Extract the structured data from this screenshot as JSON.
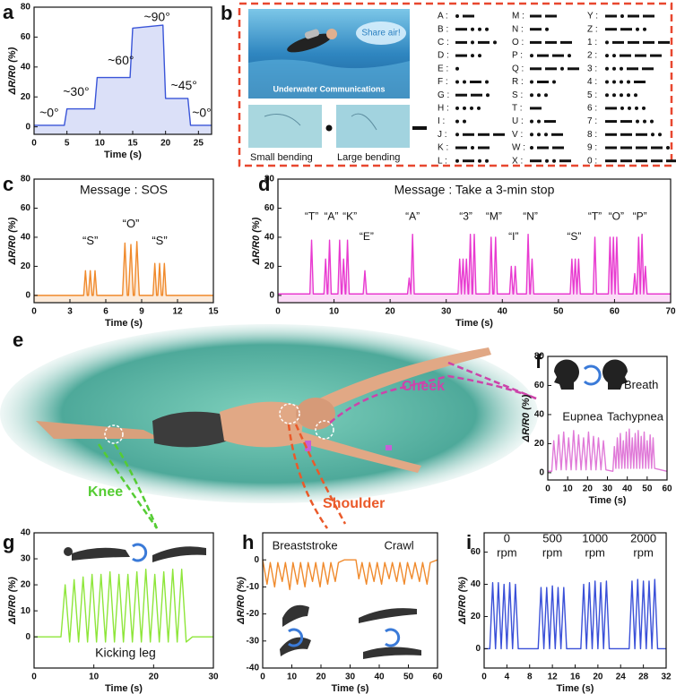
{
  "chart_data": [
    {
      "type": "line",
      "panel": "a",
      "xlabel": "Time (s)",
      "ylabel": "ΔR/R0 (%)",
      "color": "#3a55d8",
      "area": true,
      "xlim": [
        0,
        27
      ],
      "ylim": [
        -5,
        80
      ],
      "xticks": [
        0,
        5,
        10,
        15,
        20,
        25
      ],
      "yticks": [
        0,
        20,
        40,
        60,
        80
      ],
      "x": [
        0,
        4.6,
        5.0,
        9.2,
        9.6,
        14.6,
        15.0,
        19.6,
        20.0,
        23.4,
        23.8,
        27
      ],
      "values": [
        1,
        1,
        12,
        12,
        33,
        33,
        66,
        68,
        19,
        19,
        1,
        1
      ],
      "annotations": [
        "~0°",
        "~30°",
        "~60°",
        "~90°",
        "~45°",
        "~0°"
      ]
    },
    {
      "type": "line",
      "panel": "c",
      "title": "Message : SOS",
      "xlabel": "Time (s)",
      "ylabel": "ΔR/R0 (%)",
      "color": "#f08a2c",
      "area": true,
      "xlim": [
        0,
        15
      ],
      "ylim": [
        -5,
        80
      ],
      "xticks": [
        0,
        3,
        6,
        9,
        12,
        15
      ],
      "yticks": [
        0,
        20,
        40,
        60,
        80
      ],
      "x": [
        0,
        4.15,
        4.3,
        4.45,
        4.55,
        4.7,
        4.85,
        4.95,
        5.1,
        5.25,
        7.4,
        7.6,
        7.8,
        7.9,
        8.1,
        8.3,
        8.4,
        8.6,
        8.8,
        9.95,
        10.1,
        10.25,
        10.35,
        10.5,
        10.65,
        10.75,
        10.9,
        11.05,
        15
      ],
      "values": [
        0,
        0,
        17,
        0,
        0,
        17,
        0,
        0,
        17,
        0,
        0,
        36,
        0,
        0,
        35,
        0,
        0,
        37,
        0,
        0,
        22,
        0,
        0,
        22,
        0,
        0,
        22,
        0,
        0
      ],
      "annotations": [
        "“S”",
        "“O”",
        "“S”"
      ]
    },
    {
      "type": "line",
      "panel": "d",
      "title": "Message : Take a 3-min stop",
      "xlabel": "Time (s)",
      "ylabel": "ΔR/R0 (%)",
      "color": "#e83ad0",
      "area": true,
      "xlim": [
        0,
        70
      ],
      "ylim": [
        -5,
        80
      ],
      "xticks": [
        0,
        10,
        20,
        30,
        40,
        50,
        60,
        70
      ],
      "yticks": [
        0,
        20,
        40,
        60,
        80
      ],
      "x": [
        0,
        5.7,
        6,
        6.3,
        8.2,
        8.5,
        8.8,
        8.9,
        9.2,
        9.5,
        10.7,
        11,
        11.3,
        11.4,
        11.7,
        12,
        12.1,
        12.4,
        12.7,
        15.2,
        15.5,
        15.8,
        23.1,
        23.4,
        23.7,
        23.7,
        24,
        24.3,
        32.1,
        32.4,
        32.7,
        32.7,
        33,
        33.3,
        33.3,
        33.6,
        33.9,
        34,
        34.3,
        34.6,
        34.7,
        35,
        35.3,
        37.7,
        38,
        38.3,
        38.5,
        38.8,
        39.1,
        41.3,
        41.6,
        41.9,
        42,
        42.3,
        42.6,
        44.3,
        44.6,
        44.9,
        45,
        45.3,
        45.6,
        52.1,
        52.4,
        52.7,
        52.7,
        53,
        53.3,
        53.3,
        53.6,
        53.9,
        56.2,
        56.5,
        56.8,
        58.9,
        59.2,
        59.5,
        59.5,
        59.8,
        60.1,
        60.1,
        60.4,
        60.7,
        63.3,
        63.6,
        63.9,
        64,
        64.3,
        64.6,
        64.6,
        64.9,
        65.2,
        65.2,
        65.5,
        65.8,
        70
      ],
      "values": [
        1,
        1,
        38,
        1,
        1,
        25,
        1,
        1,
        38,
        1,
        1,
        38,
        1,
        1,
        25,
        1,
        1,
        38,
        1,
        1,
        17,
        1,
        1,
        12,
        1,
        1,
        42,
        1,
        1,
        25,
        1,
        1,
        25,
        1,
        1,
        25,
        1,
        1,
        42,
        1,
        1,
        42,
        1,
        1,
        40,
        1,
        1,
        40,
        1,
        1,
        20,
        1,
        1,
        20,
        1,
        1,
        42,
        1,
        1,
        25,
        1,
        1,
        25,
        1,
        1,
        25,
        1,
        1,
        25,
        1,
        1,
        40,
        1,
        1,
        40,
        1,
        1,
        40,
        1,
        1,
        40,
        1,
        1,
        15,
        1,
        1,
        40,
        1,
        1,
        42,
        1,
        1,
        20,
        1,
        1
      ],
      "annotations": [
        "“T”",
        "“A”",
        "“K”",
        "“E”",
        "“A”",
        "“3”",
        "“M”",
        "“I”",
        "“N”",
        "“S”",
        "“T”",
        "“O”",
        "“P”"
      ]
    },
    {
      "type": "line",
      "panel": "f",
      "xlabel": "Time (s)",
      "ylabel": "ΔR/R0 (%)",
      "color": "#e07ad8",
      "xlim": [
        0,
        60
      ],
      "ylim": [
        -5,
        80
      ],
      "xticks": [
        0,
        10,
        20,
        30,
        40,
        50,
        60
      ],
      "yticks": [
        0,
        20,
        40,
        60,
        80
      ],
      "x": [
        0,
        2,
        3,
        4.25,
        5.5,
        6.75,
        8,
        9.25,
        10.5,
        11.75,
        13,
        14.25,
        15.5,
        16.75,
        18,
        19.25,
        20.5,
        21.75,
        23,
        24.25,
        25.5,
        26.75,
        28,
        29.25,
        32.75,
        33.5,
        34.25,
        35,
        35.75,
        36.5,
        37.25,
        38,
        38.75,
        39.5,
        40.25,
        41,
        41.75,
        42.5,
        43.25,
        44,
        44.75,
        45.5,
        46.25,
        47,
        47.75,
        48.5,
        49.25,
        50,
        50.75,
        51.5,
        52.25,
        53,
        53.75,
        60
      ],
      "values": [
        1,
        1,
        22,
        2,
        26,
        2,
        28,
        2,
        24,
        2,
        29,
        2,
        26,
        2,
        24,
        2,
        28,
        2,
        25,
        2,
        24,
        2,
        22,
        2,
        1,
        18,
        3,
        24,
        3,
        27,
        3,
        22,
        3,
        28,
        3,
        30,
        3,
        24,
        3,
        27,
        3,
        29,
        3,
        25,
        3,
        28,
        3,
        22,
        3,
        26,
        3,
        24,
        3,
        1
      ],
      "annotations": [
        "Breath",
        "Eupnea",
        "Tachypnea"
      ]
    },
    {
      "type": "line",
      "panel": "g",
      "xlabel": "Time (s)",
      "ylabel": "ΔR/R0 (%)",
      "color": "#8ee63a",
      "xlim": [
        0,
        30
      ],
      "ylim": [
        -12,
        40
      ],
      "xticks": [
        0,
        10,
        20,
        30
      ],
      "yticks": [
        0,
        10,
        20,
        30,
        40
      ],
      "x": [
        0,
        4.5,
        5.2,
        5.95,
        6.7,
        7.45,
        8.2,
        8.95,
        9.7,
        10.45,
        11.2,
        11.95,
        12.7,
        13.45,
        14.2,
        14.95,
        15.7,
        16.45,
        17.2,
        17.95,
        18.7,
        19.45,
        20.2,
        20.95,
        21.7,
        22.45,
        23.2,
        23.95,
        24.7,
        25.45,
        26.5,
        30
      ],
      "values": [
        0,
        0,
        20,
        -2,
        22,
        -2,
        23,
        -2,
        24,
        -2,
        24,
        -2,
        25,
        -2,
        24,
        -2,
        24,
        -2,
        25,
        -2,
        26,
        -2,
        24,
        -2,
        25,
        -2,
        26,
        -2,
        26,
        -2,
        0,
        0
      ],
      "annotations": [
        "Kicking leg"
      ]
    },
    {
      "type": "line",
      "panel": "h",
      "xlabel": "Time (s)",
      "ylabel": "ΔR/R0 (%)",
      "color": "#f08a2c",
      "xlim": [
        0,
        60
      ],
      "ylim": [
        -40,
        10
      ],
      "xticks": [
        0,
        10,
        20,
        30,
        40,
        50,
        60
      ],
      "yticks": [
        0,
        -10,
        -20,
        -30,
        -40
      ],
      "x": [
        0,
        1.5,
        2.6,
        4.1,
        5.2,
        6.7,
        7.8,
        9.3,
        10.4,
        11.9,
        13,
        14.5,
        15.6,
        17.1,
        18.2,
        19.7,
        20.8,
        22.3,
        23.4,
        24.9,
        26,
        28,
        32,
        33,
        34.1,
        35.6,
        36.7,
        38.2,
        39.3,
        40.8,
        41.9,
        43.4,
        44.5,
        46,
        47.1,
        48.6,
        49.7,
        51.2,
        52.3,
        53.8,
        54.9,
        56.4,
        57.5,
        60
      ],
      "values": [
        0,
        -9,
        -1,
        -10,
        -1,
        -8,
        -1,
        -11,
        -1,
        -9,
        -1,
        -10,
        -1,
        -8,
        -1,
        -10,
        -1,
        -9,
        -1,
        -8,
        -1,
        0,
        0,
        -7,
        -1,
        -9,
        -1,
        -8,
        -1,
        -9,
        -1,
        -7,
        -1,
        -8,
        -1,
        -9,
        -1,
        -7,
        -1,
        -8,
        -1,
        -9,
        -1,
        0
      ],
      "annotations": [
        "Breaststroke",
        "Crawl"
      ]
    },
    {
      "type": "line",
      "panel": "i",
      "xlabel": "Time (s)",
      "ylabel": "ΔR/R0 (%)",
      "color": "#3a50d8",
      "xlim": [
        0,
        32
      ],
      "ylim": [
        -12,
        72
      ],
      "xticks": [
        0,
        4,
        8,
        12,
        16,
        20,
        24,
        28,
        32
      ],
      "yticks": [
        0,
        20,
        40,
        60
      ],
      "x": [
        0,
        1,
        1.5,
        2,
        2.5,
        3,
        3.5,
        4,
        4.5,
        5,
        5.5,
        6,
        9.5,
        10,
        10.5,
        11,
        11.5,
        12,
        12.5,
        13,
        13.5,
        14,
        14.5,
        17,
        17.5,
        18,
        18.5,
        19,
        19.5,
        20,
        20.5,
        21,
        21.5,
        22,
        25.5,
        26,
        26.5,
        27,
        27.5,
        28,
        28.5,
        29,
        29.5,
        30,
        30.5,
        32
      ],
      "values": [
        0,
        0,
        41,
        0,
        41,
        0,
        40,
        0,
        41,
        0,
        40,
        0,
        0,
        38,
        0,
        38,
        0,
        39,
        0,
        38,
        0,
        38,
        0,
        0,
        40,
        0,
        41,
        0,
        42,
        0,
        41,
        0,
        42,
        0,
        0,
        42,
        0,
        43,
        0,
        42,
        0,
        42,
        0,
        43,
        0,
        0
      ],
      "annotations": [
        [
          "0",
          "rpm"
        ],
        [
          "500",
          "rpm"
        ],
        [
          "1000",
          "rpm"
        ],
        [
          "2000",
          "rpm"
        ]
      ]
    }
  ],
  "morse_panel": {
    "panel": "b",
    "bubble": "Share air!",
    "caption": "Underwater Communications",
    "small": "Small bending",
    "large": "Large bending",
    "codes": [
      {
        "label": "A :",
        "code": ".-"
      },
      {
        "label": "B :",
        "code": "-..."
      },
      {
        "label": "C :",
        "code": "-.-."
      },
      {
        "label": "D :",
        "code": "-.."
      },
      {
        "label": "E :",
        "code": "."
      },
      {
        "label": "F :",
        "code": "..-."
      },
      {
        "label": "G :",
        "code": "--."
      },
      {
        "label": "H :",
        "code": "...."
      },
      {
        "label": "I :",
        "code": ".."
      },
      {
        "label": "J :",
        "code": ".---"
      },
      {
        "label": "K :",
        "code": "-.-"
      },
      {
        "label": "L :",
        "code": ".-.."
      },
      {
        "label": "M :",
        "code": "--"
      },
      {
        "label": "N :",
        "code": "-."
      },
      {
        "label": "O :",
        "code": "---"
      },
      {
        "label": "P :",
        "code": ".--."
      },
      {
        "label": "Q :",
        "code": "--.-"
      },
      {
        "label": "R :",
        "code": ".-."
      },
      {
        "label": "S :",
        "code": "..."
      },
      {
        "label": "T :",
        "code": "-"
      },
      {
        "label": "U :",
        "code": "..-"
      },
      {
        "label": "V :",
        "code": "...-"
      },
      {
        "label": "W :",
        "code": ".--"
      },
      {
        "label": "X :",
        "code": "-..-"
      },
      {
        "label": "Y :",
        "code": "-.--"
      },
      {
        "label": "Z :",
        "code": "--.."
      },
      {
        "label": "1 :",
        "code": ".----"
      },
      {
        "label": "2 :",
        "code": "..---"
      },
      {
        "label": "3 :",
        "code": "...--"
      },
      {
        "label": "4 :",
        "code": "....-"
      },
      {
        "label": "5 :",
        "code": "....."
      },
      {
        "label": "6 :",
        "code": "-...."
      },
      {
        "label": "7 :",
        "code": "--..."
      },
      {
        "label": "8 :",
        "code": "---.."
      },
      {
        "label": "9 :",
        "code": "----."
      },
      {
        "label": "0 :",
        "code": "-----"
      }
    ]
  },
  "illustration": {
    "panel": "e",
    "cheek": "Cheek",
    "knee": "Knee",
    "shoulder": "Shoulder"
  }
}
